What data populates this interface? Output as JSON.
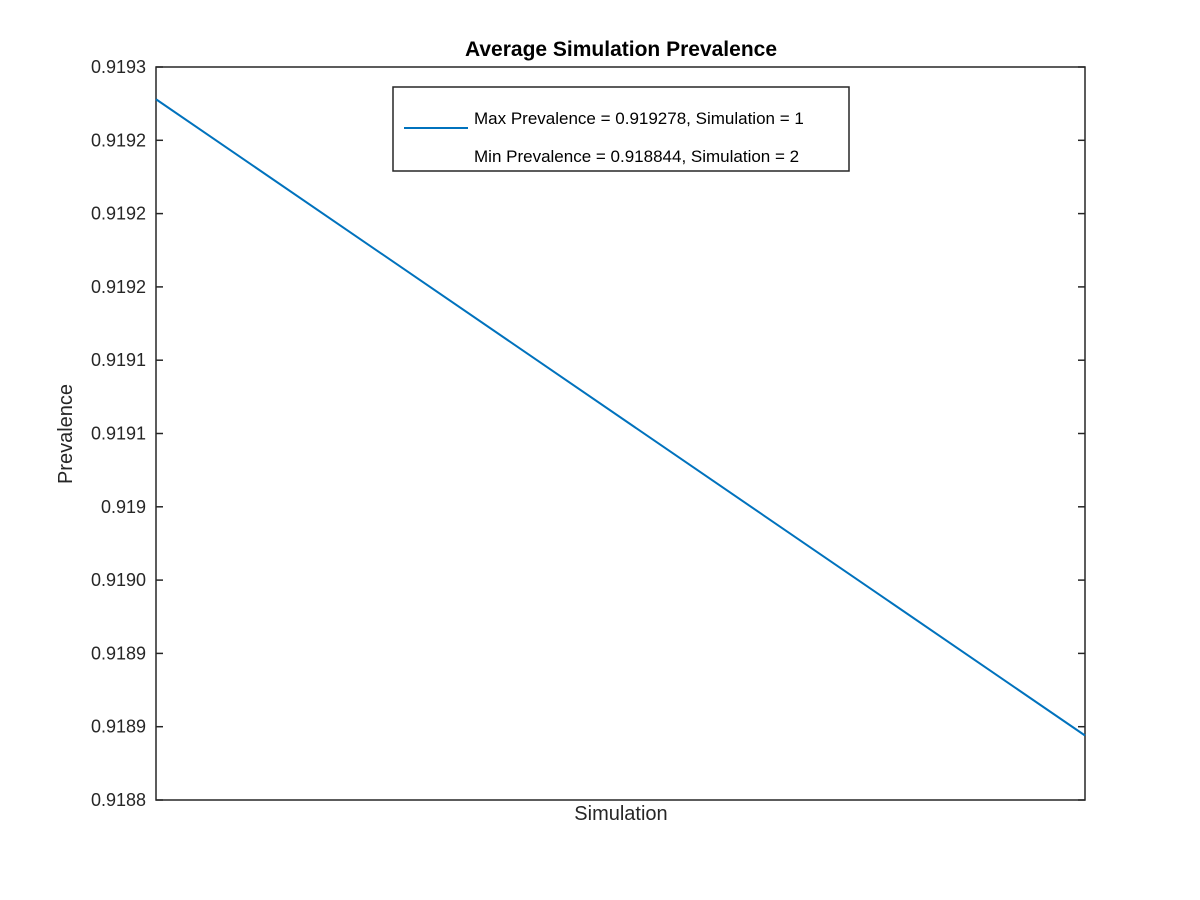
{
  "chart_data": {
    "type": "line",
    "title": "Average Simulation Prevalence",
    "xlabel": "Simulation",
    "ylabel": "Prevalence",
    "x": [
      1,
      2
    ],
    "xlim": [
      1,
      2
    ],
    "ylim": [
      0.9188,
      0.9193
    ],
    "yticks": [
      0.9188,
      0.91885,
      0.9189,
      0.91895,
      0.919,
      0.91905,
      0.9191,
      0.91915,
      0.9192,
      0.91925,
      0.9193
    ],
    "ytick_labels": [
      "0.9188",
      "0.9189",
      "0.9189",
      "0.9190",
      "0.919",
      "0.9191",
      "0.9191",
      "0.9192",
      "0.9192",
      "0.9192",
      "0.9193"
    ],
    "series": [
      {
        "values": [
          0.919278,
          0.918844
        ],
        "color": "#0072BD"
      }
    ],
    "legend": {
      "position": "top-center",
      "entries": [
        {
          "label": "Max Prevalence = 0.919278, Simulation = 1",
          "line": true
        },
        {
          "label": "Min Prevalence = 0.918844, Simulation = 2",
          "line": false
        }
      ]
    },
    "grid": false
  }
}
